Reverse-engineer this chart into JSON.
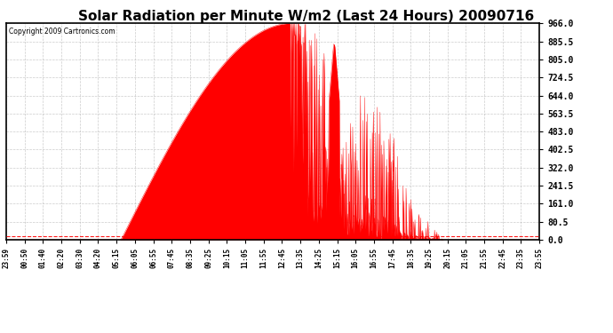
{
  "title": "Solar Radiation per Minute W/m2 (Last 24 Hours) 20090716",
  "copyright": "Copyright 2009 Cartronics.com",
  "y_min": 0.0,
  "y_max": 966.0,
  "y_ticks": [
    0.0,
    80.5,
    161.0,
    241.5,
    322.0,
    402.5,
    483.0,
    563.5,
    644.0,
    724.5,
    805.0,
    885.5,
    966.0
  ],
  "x_labels": [
    "23:59",
    "00:50",
    "01:40",
    "02:20",
    "03:30",
    "04:20",
    "05:15",
    "06:05",
    "06:55",
    "07:45",
    "08:35",
    "09:25",
    "10:15",
    "11:05",
    "11:55",
    "12:45",
    "13:35",
    "14:25",
    "15:15",
    "16:05",
    "16:55",
    "17:45",
    "18:35",
    "19:25",
    "20:15",
    "21:05",
    "21:55",
    "22:45",
    "23:35",
    "23:55"
  ],
  "background_color": "#ffffff",
  "plot_bg_color": "#ffffff",
  "fill_color": "#ff0000",
  "line_color": "#ff0000",
  "grid_color": "#aaaaaa",
  "title_fontsize": 11,
  "dashed_line_color": "#ff0000",
  "border_color": "#000000"
}
